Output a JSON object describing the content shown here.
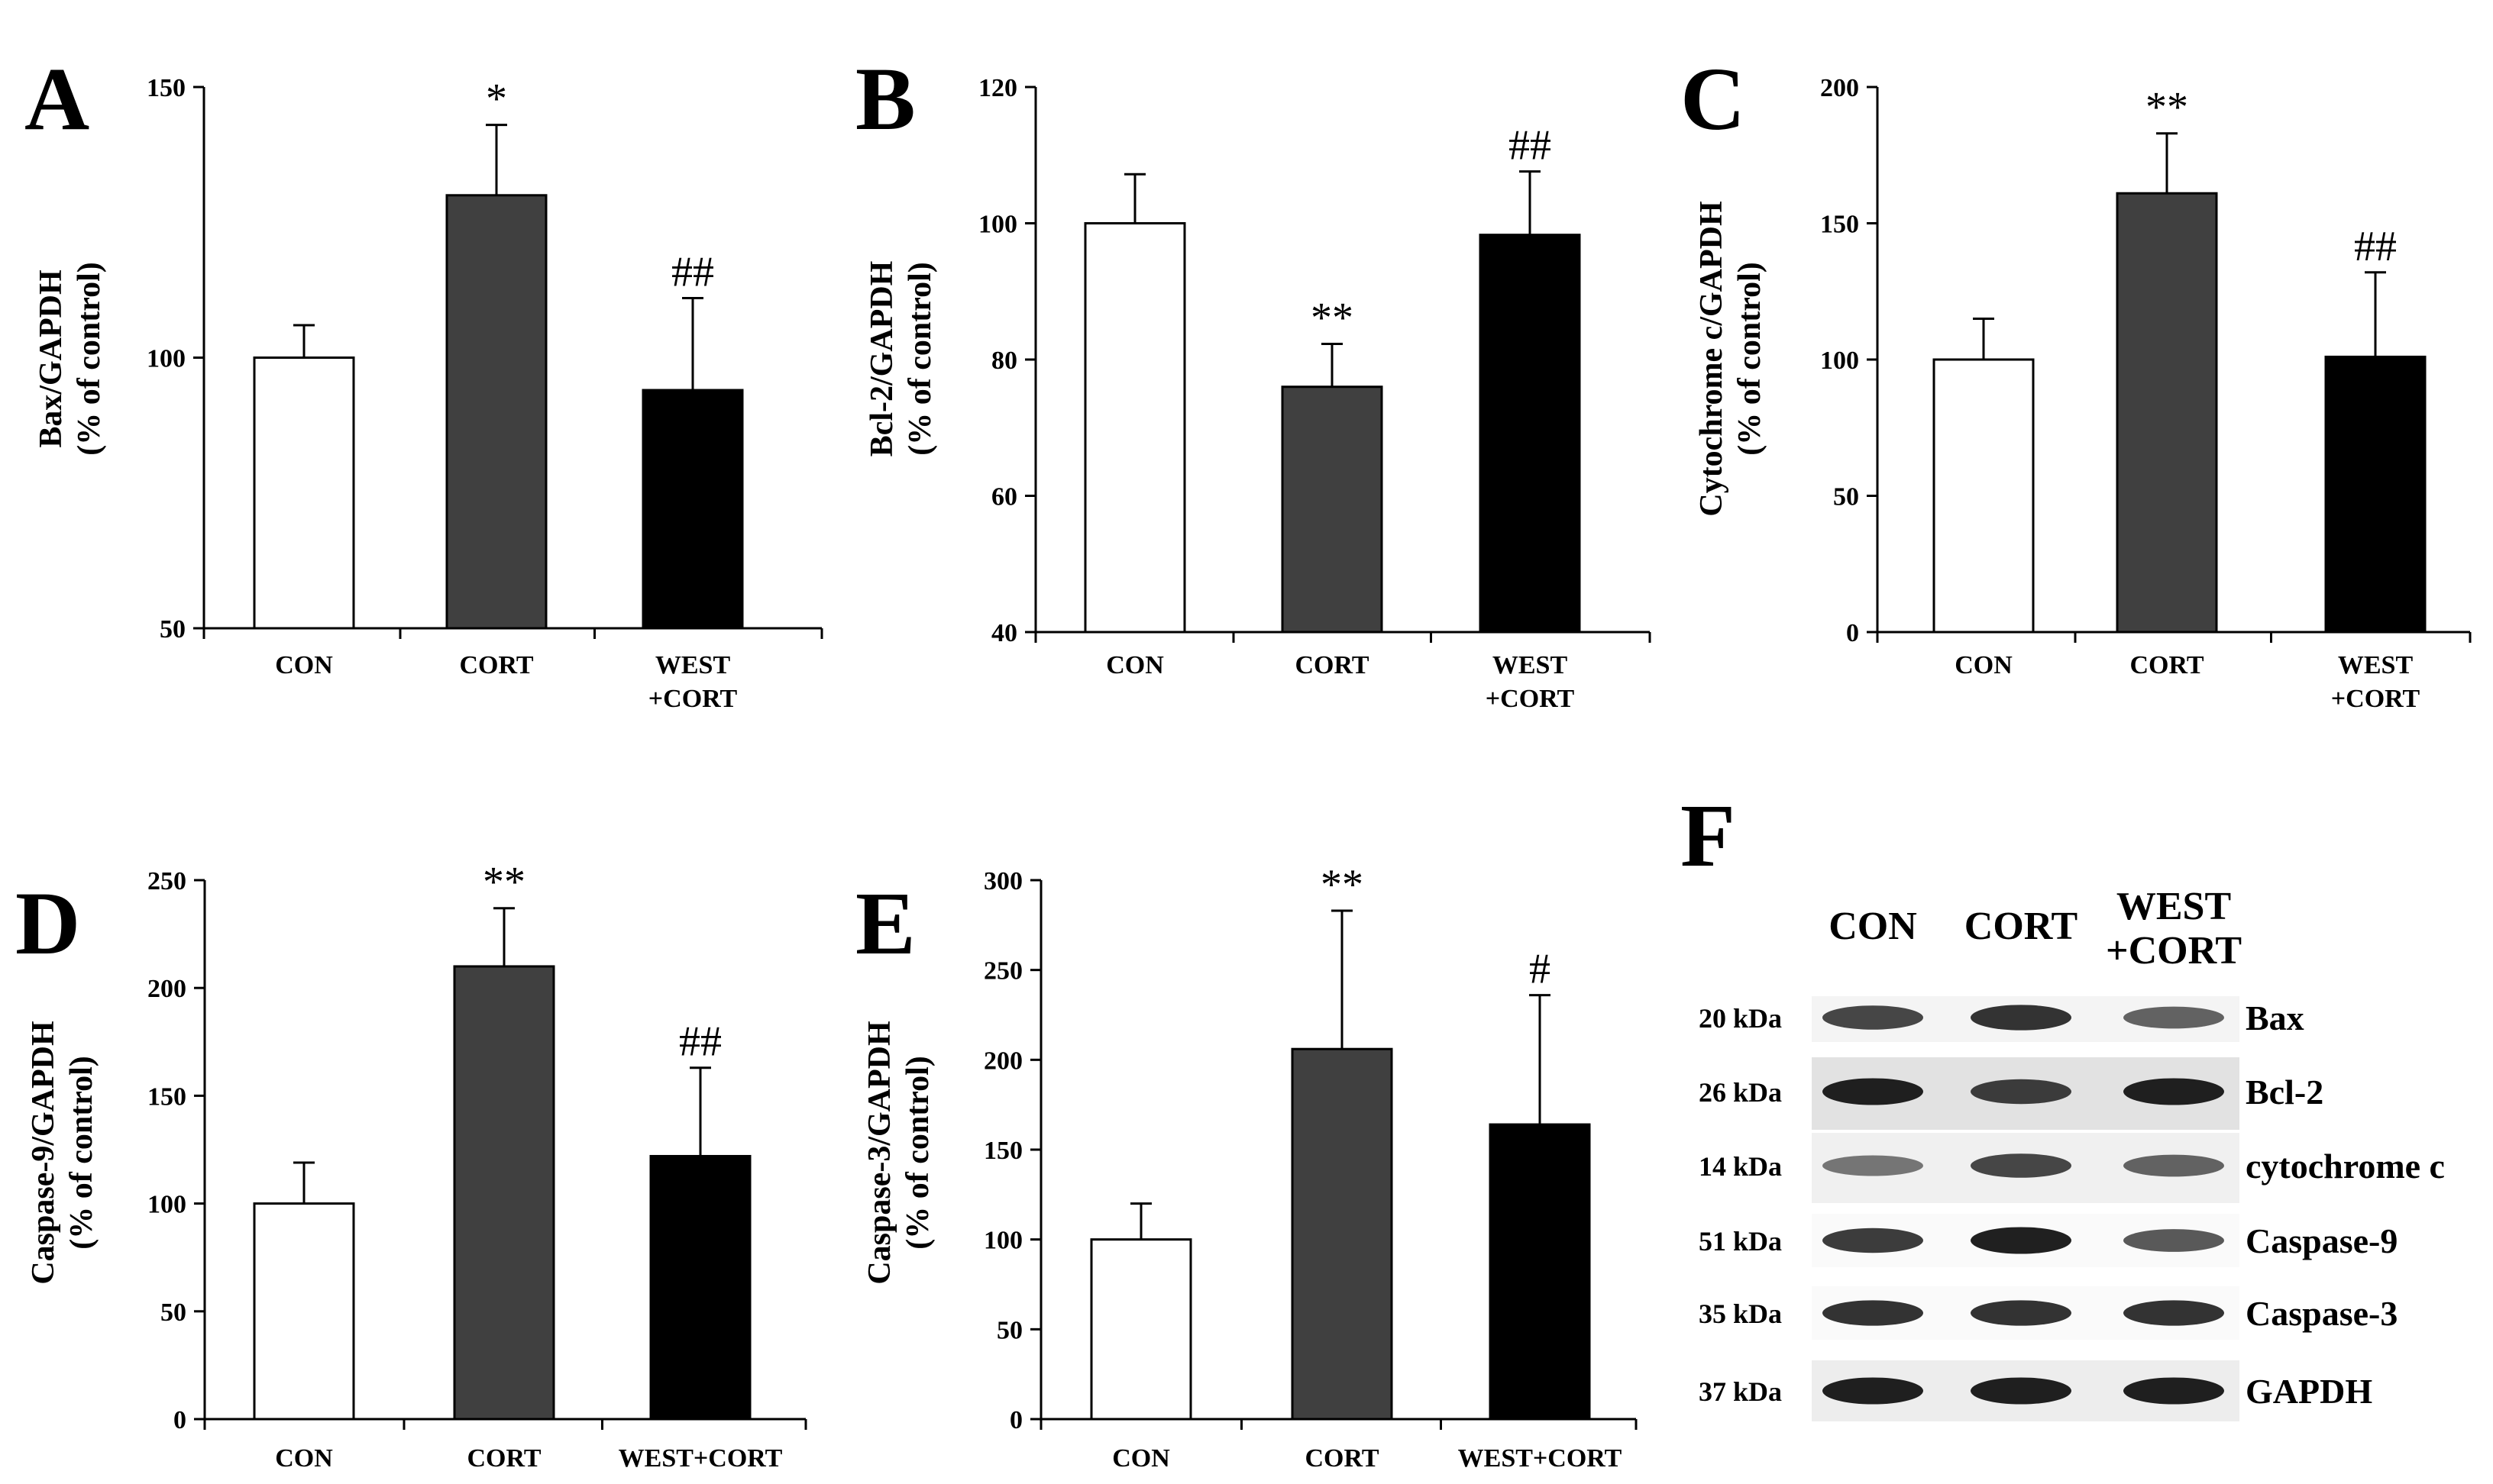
{
  "chart_data": [
    {
      "id": "A",
      "type": "bar",
      "ylabel": [
        "Bax/GAPDH",
        "(% of control)"
      ],
      "ylim": [
        50,
        150
      ],
      "yticks": [
        50,
        100,
        150
      ],
      "categories": [
        [
          "CON"
        ],
        [
          "CORT"
        ],
        [
          "WEST",
          "+CORT"
        ]
      ],
      "values": [
        100,
        130,
        94
      ],
      "errors": [
        6,
        13,
        17
      ],
      "colors": [
        "#ffffff",
        "#404040",
        "#000000"
      ],
      "annotations": [
        "",
        "*",
        "##"
      ]
    },
    {
      "id": "B",
      "type": "bar",
      "ylabel": [
        "Bcl-2/GAPDH",
        "(% of control)"
      ],
      "ylim": [
        40,
        120
      ],
      "yticks": [
        40,
        60,
        80,
        100,
        120
      ],
      "categories": [
        [
          "CON"
        ],
        [
          "CORT"
        ],
        [
          "WEST",
          "+CORT"
        ]
      ],
      "values": [
        100,
        76,
        98.3
      ],
      "errors": [
        7.2,
        6.3,
        9.3
      ],
      "colors": [
        "#ffffff",
        "#404040",
        "#000000"
      ],
      "annotations": [
        "",
        "**",
        "##"
      ]
    },
    {
      "id": "C",
      "type": "bar",
      "ylabel": [
        "Cytochrome c/GAPDH",
        "(% of control)"
      ],
      "ylim": [
        0,
        200
      ],
      "yticks": [
        0,
        50,
        100,
        150,
        200
      ],
      "categories": [
        [
          "CON"
        ],
        [
          "CORT"
        ],
        [
          "WEST",
          "+CORT"
        ]
      ],
      "values": [
        100,
        161,
        101
      ],
      "errors": [
        15,
        22,
        31
      ],
      "colors": [
        "#ffffff",
        "#404040",
        "#000000"
      ],
      "annotations": [
        "",
        "**",
        "##"
      ]
    },
    {
      "id": "D",
      "type": "bar",
      "ylabel": [
        "Caspase-9/GAPDH",
        "(% of control)"
      ],
      "ylim": [
        0,
        250
      ],
      "yticks": [
        0,
        50,
        100,
        150,
        200,
        250
      ],
      "categories": [
        [
          "CON"
        ],
        [
          "CORT"
        ],
        [
          "WEST+CORT"
        ]
      ],
      "values": [
        100,
        210,
        122
      ],
      "errors": [
        19,
        27,
        41
      ],
      "colors": [
        "#ffffff",
        "#404040",
        "#000000"
      ],
      "annotations": [
        "",
        "**",
        "##"
      ]
    },
    {
      "id": "E",
      "type": "bar",
      "ylabel": [
        "Caspase-3/GAPDH",
        "(% of control)"
      ],
      "ylim": [
        0,
        300
      ],
      "yticks": [
        0,
        50,
        100,
        150,
        200,
        250,
        300
      ],
      "categories": [
        [
          "CON"
        ],
        [
          "CORT"
        ],
        [
          "WEST+CORT"
        ]
      ],
      "values": [
        100,
        206,
        164
      ],
      "errors": [
        20,
        77,
        72
      ],
      "colors": [
        "#ffffff",
        "#404040",
        "#000000"
      ],
      "annotations": [
        "",
        "**",
        "#"
      ]
    }
  ],
  "western_blot": {
    "id": "F",
    "lanes": [
      [
        "CON"
      ],
      [
        "CORT"
      ],
      [
        "WEST",
        "+CORT"
      ]
    ],
    "rows": [
      {
        "kda": "20 kDa",
        "protein": "Bax",
        "intensity": [
          0.75,
          0.85,
          0.6
        ]
      },
      {
        "kda": "26 kDa",
        "protein": "Bcl-2",
        "intensity": [
          0.95,
          0.8,
          0.95
        ]
      },
      {
        "kda": "14 kDa",
        "protein": "cytochrome c",
        "intensity": [
          0.5,
          0.75,
          0.6
        ]
      },
      {
        "kda": "51 kDa",
        "protein": "Caspase-9",
        "intensity": [
          0.8,
          0.95,
          0.65
        ]
      },
      {
        "kda": "35 kDa",
        "protein": "Caspase-3",
        "intensity": [
          0.85,
          0.85,
          0.85
        ]
      },
      {
        "kda": "37 kDa",
        "protein": "GAPDH",
        "intensity": [
          0.95,
          0.95,
          0.95
        ]
      }
    ]
  }
}
